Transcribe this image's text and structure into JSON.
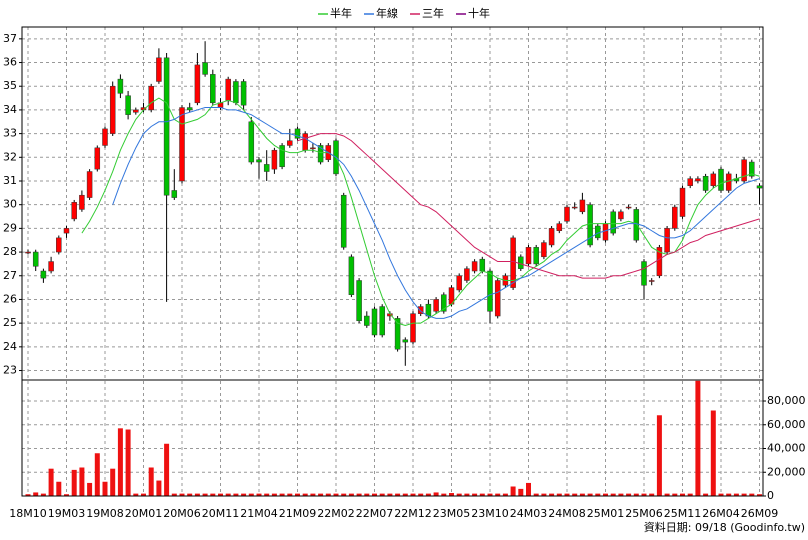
{
  "chart_data": [
    {
      "type": "candlestick",
      "categories": [
        "18M10",
        null,
        null,
        null,
        null,
        "19M03",
        null,
        null,
        null,
        null,
        "19M08",
        null,
        null,
        null,
        null,
        "20M01",
        null,
        null,
        null,
        null,
        "20M06",
        null,
        null,
        null,
        null,
        "20M11",
        null,
        null,
        null,
        null,
        "21M04",
        null,
        null,
        null,
        null,
        "21M09",
        null,
        null,
        null,
        null,
        "22M02",
        null,
        null,
        null,
        null,
        "22M07",
        null,
        null,
        null,
        null,
        "22M12",
        null,
        null,
        null,
        null,
        "23M05",
        null,
        null,
        null,
        null,
        "23M10",
        null,
        null,
        null,
        null,
        "24M03",
        null,
        null,
        null,
        null,
        "24M08",
        null,
        null,
        null,
        null,
        "25M01",
        null,
        null,
        null,
        null,
        "25M06",
        null,
        null,
        null,
        null,
        "25M11",
        null,
        null,
        null,
        null,
        "26M04",
        null,
        null,
        null,
        null,
        "26M09"
      ],
      "open": [
        28.0,
        28.0,
        27.2,
        27.2,
        28.0,
        28.8,
        29.4,
        29.8,
        30.3,
        31.5,
        32.5,
        33.0,
        35.3,
        34.6,
        33.9,
        34.0,
        34.0,
        35.2,
        36.2,
        30.6,
        31.0,
        34.1,
        34.3,
        36.0,
        35.5,
        34.1,
        34.4,
        35.2,
        35.2,
        33.5,
        31.9,
        31.7,
        31.5,
        32.5,
        32.5,
        33.2,
        32.3,
        32.4,
        32.5,
        31.9,
        32.7,
        30.4,
        27.8,
        26.8,
        25.3,
        25.6,
        25.7,
        25.3,
        25.2,
        24.3,
        24.2,
        25.4,
        25.8,
        25.5,
        26.2,
        25.8,
        26.4,
        26.8,
        27.2,
        27.7,
        27.2,
        25.3,
        26.6,
        26.5,
        27.8,
        27.5,
        28.2,
        27.8,
        28.3,
        28.9,
        29.3,
        29.9,
        29.7,
        30.0,
        29.1,
        28.5,
        29.7,
        29.4,
        29.9,
        29.8,
        27.6,
        26.8,
        27.0,
        28.0,
        29.0,
        29.5,
        30.8,
        31.0,
        31.2,
        30.8,
        31.5,
        30.6,
        31.1,
        31.0,
        31.8,
        30.8
      ],
      "high": [
        28.1,
        28.1,
        27.3,
        27.8,
        28.7,
        29.1,
        30.2,
        30.6,
        31.5,
        32.5,
        33.3,
        35.2,
        35.5,
        34.8,
        34.1,
        34.3,
        35.1,
        36.6,
        36.4,
        31.5,
        34.2,
        34.3,
        36.4,
        36.9,
        35.7,
        34.5,
        35.4,
        35.3,
        35.3,
        33.7,
        32.0,
        32.3,
        32.4,
        32.6,
        33.2,
        33.3,
        33.1,
        32.6,
        32.6,
        32.6,
        32.8,
        30.5,
        27.9,
        26.9,
        25.5,
        25.7,
        25.8,
        25.5,
        25.3,
        24.4,
        25.5,
        25.8,
        26.0,
        26.1,
        26.3,
        26.6,
        27.1,
        27.4,
        27.7,
        27.8,
        27.3,
        26.9,
        27.1,
        28.7,
        27.9,
        28.3,
        28.3,
        28.5,
        29.1,
        29.3,
        30.0,
        30.1,
        30.5,
        30.1,
        29.2,
        29.3,
        29.8,
        29.8,
        30.0,
        29.9,
        27.7,
        26.9,
        28.3,
        29.1,
        30.0,
        30.8,
        31.2,
        31.2,
        31.3,
        31.4,
        31.6,
        31.4,
        31.3,
        32.0,
        31.9,
        30.9
      ],
      "low": [
        27.9,
        27.2,
        26.7,
        27.1,
        27.9,
        28.6,
        29.3,
        29.7,
        30.2,
        31.4,
        32.4,
        32.9,
        34.5,
        33.6,
        33.8,
        33.9,
        33.9,
        35.1,
        25.9,
        30.2,
        30.9,
        33.9,
        34.2,
        35.4,
        34.2,
        34.0,
        34.2,
        34.2,
        34.0,
        31.7,
        31.1,
        31.0,
        31.3,
        31.5,
        32.4,
        32.7,
        32.2,
        32.2,
        31.7,
        31.8,
        31.2,
        28.1,
        26.1,
        25.0,
        24.8,
        24.4,
        24.4,
        25.1,
        23.8,
        23.2,
        24.1,
        25.3,
        25.2,
        25.4,
        25.4,
        25.7,
        26.3,
        26.7,
        27.1,
        27.1,
        25.0,
        25.2,
        26.5,
        26.4,
        27.2,
        27.4,
        27.4,
        27.7,
        28.2,
        28.8,
        29.2,
        29.8,
        29.6,
        28.2,
        28.5,
        28.4,
        28.7,
        29.3,
        29.8,
        28.4,
        26.0,
        26.6,
        26.9,
        27.9,
        28.9,
        29.4,
        30.7,
        30.9,
        30.5,
        30.7,
        30.5,
        30.5,
        30.9,
        30.9,
        31.1,
        30.0
      ],
      "close": [
        28.0,
        27.4,
        26.9,
        27.6,
        28.6,
        29.0,
        30.1,
        30.4,
        31.4,
        32.4,
        33.2,
        35.0,
        34.7,
        33.8,
        34.0,
        34.1,
        35.0,
        36.2,
        30.4,
        30.3,
        34.1,
        34.0,
        35.9,
        35.5,
        34.3,
        34.3,
        35.3,
        34.3,
        34.2,
        31.8,
        31.8,
        31.4,
        32.3,
        31.6,
        32.7,
        32.8,
        33.0,
        32.4,
        31.8,
        32.5,
        31.3,
        28.2,
        26.2,
        25.1,
        24.9,
        24.5,
        24.5,
        25.4,
        23.9,
        24.2,
        25.4,
        25.7,
        25.3,
        26.0,
        25.5,
        26.5,
        27.0,
        27.3,
        27.6,
        27.2,
        25.5,
        26.8,
        27.0,
        28.6,
        27.3,
        28.2,
        27.5,
        28.4,
        29.0,
        29.2,
        29.9,
        29.9,
        30.2,
        28.3,
        28.6,
        29.2,
        28.8,
        29.7,
        29.9,
        28.5,
        26.6,
        26.8,
        28.2,
        29.0,
        29.9,
        30.7,
        31.1,
        31.1,
        30.6,
        31.3,
        30.6,
        31.3,
        31.0,
        31.9,
        31.2,
        30.7
      ],
      "up_color": "#ff0000",
      "down_color": "#00c000",
      "series": [
        {
          "name": "半年",
          "color": "#33cc33",
          "values": [
            null,
            null,
            null,
            null,
            null,
            null,
            null,
            28.8,
            29.3,
            29.9,
            30.6,
            31.4,
            32.3,
            33.0,
            33.6,
            34.0,
            34.3,
            34.5,
            34.3,
            33.6,
            33.4,
            33.5,
            33.6,
            33.8,
            34.2,
            34.3,
            34.4,
            34.3,
            34.0,
            33.6,
            33.2,
            32.8,
            32.5,
            32.3,
            32.2,
            32.2,
            32.3,
            32.3,
            32.2,
            32.2,
            32.0,
            31.3,
            30.3,
            29.2,
            28.1,
            27.0,
            26.1,
            25.4,
            25.0,
            24.9,
            25.0,
            25.0,
            25.2,
            25.4,
            25.6,
            25.8,
            26.2,
            26.6,
            26.9,
            27.2,
            27.1,
            26.9,
            26.8,
            26.8,
            26.9,
            27.2,
            27.4,
            27.6,
            27.9,
            28.1,
            28.5,
            28.8,
            29.1,
            29.2,
            29.2,
            29.2,
            29.2,
            29.2,
            29.3,
            29.2,
            28.7,
            28.2,
            28.0,
            27.9,
            28.0,
            28.5,
            29.3,
            30.0,
            30.4,
            30.7,
            30.9,
            31.0,
            31.1,
            31.2,
            31.3,
            31.2
          ]
        },
        {
          "name": "年線",
          "color": "#3377dd",
          "values": [
            null,
            null,
            null,
            null,
            null,
            null,
            null,
            null,
            null,
            null,
            null,
            30.0,
            30.9,
            31.7,
            32.4,
            33.0,
            33.3,
            33.5,
            33.5,
            33.6,
            33.8,
            33.9,
            34.0,
            34.1,
            34.1,
            34.1,
            34.0,
            34.0,
            33.9,
            33.8,
            33.6,
            33.4,
            33.2,
            33.0,
            33.0,
            32.9,
            32.8,
            32.6,
            32.4,
            32.2,
            32.0,
            31.7,
            31.2,
            30.6,
            29.9,
            29.2,
            28.5,
            27.7,
            27.0,
            26.4,
            25.9,
            25.5,
            25.3,
            25.2,
            25.2,
            25.3,
            25.5,
            25.6,
            25.8,
            26.0,
            26.2,
            26.3,
            26.5,
            26.7,
            26.9,
            27.0,
            27.2,
            27.4,
            27.6,
            27.8,
            28.0,
            28.2,
            28.4,
            28.6,
            28.8,
            28.9,
            29.0,
            29.1,
            29.2,
            29.2,
            29.1,
            28.9,
            28.7,
            28.6,
            28.6,
            28.7,
            28.9,
            29.2,
            29.5,
            29.8,
            30.1,
            30.4,
            30.7,
            30.9,
            31.0,
            31.1
          ]
        },
        {
          "name": "三年",
          "color": "#d02060",
          "values": [
            null,
            null,
            null,
            null,
            null,
            null,
            null,
            null,
            null,
            null,
            null,
            null,
            null,
            null,
            null,
            null,
            null,
            null,
            null,
            null,
            null,
            null,
            null,
            null,
            null,
            null,
            null,
            null,
            null,
            null,
            null,
            null,
            null,
            null,
            null,
            32.7,
            32.8,
            32.9,
            33.0,
            33.0,
            33.0,
            32.9,
            32.7,
            32.4,
            32.1,
            31.8,
            31.5,
            31.2,
            30.9,
            30.6,
            30.3,
            30.0,
            29.9,
            29.7,
            29.4,
            29.1,
            28.8,
            28.5,
            28.2,
            28.0,
            27.8,
            27.6,
            27.6,
            27.6,
            27.5,
            27.4,
            27.3,
            27.2,
            27.1,
            27.0,
            27.0,
            27.0,
            26.9,
            26.9,
            26.9,
            26.9,
            27.0,
            27.0,
            27.1,
            27.2,
            27.3,
            27.5,
            27.7,
            27.9,
            28.0,
            28.2,
            28.4,
            28.5,
            28.7,
            28.8,
            28.9,
            29.0,
            29.1,
            29.2,
            29.3,
            29.4
          ]
        },
        {
          "name": "十年",
          "color": "#800080"
        }
      ],
      "ylim": [
        22.6,
        37.5
      ],
      "yticks": [
        23,
        24,
        25,
        26,
        27,
        28,
        29,
        30,
        31,
        32,
        33,
        34,
        35,
        36,
        37
      ],
      "grid": true
    },
    {
      "type": "bar",
      "color": "#ee1111",
      "values": [
        1500,
        3000,
        2000,
        23000,
        12000,
        1500,
        22000,
        24000,
        11000,
        36000,
        12000,
        23000,
        57000,
        56000,
        2000,
        2000,
        24000,
        13000,
        44000,
        2000,
        2000,
        2000,
        2000,
        2000,
        2000,
        2000,
        2000,
        2000,
        2000,
        2000,
        2000,
        2000,
        2000,
        2000,
        2000,
        2000,
        2000,
        2000,
        2000,
        2000,
        2000,
        2000,
        2000,
        2000,
        2000,
        2000,
        2000,
        2000,
        2000,
        2000,
        2000,
        2000,
        2000,
        3000,
        2000,
        2500,
        2000,
        2000,
        2000,
        2000,
        2000,
        2000,
        2000,
        8000,
        6000,
        11000,
        2000,
        2000,
        2000,
        2000,
        2000,
        2000,
        2000,
        2000,
        2000,
        2000,
        2000,
        2000,
        2000,
        2000,
        2000,
        2000,
        68000,
        2000,
        2000,
        2000,
        2000,
        97000,
        2000,
        72000,
        2000,
        2000,
        2000,
        2000,
        2000,
        1500
      ],
      "ylim": [
        0,
        97700
      ],
      "yticks": [
        0,
        {
          "value": 20000,
          "label": "20,000"
        },
        {
          "value": 40000,
          "label": "40,000"
        },
        {
          "value": 60000,
          "label": "60,000"
        },
        {
          "value": 80000,
          "label": "80,000"
        }
      ],
      "grid": true
    }
  ],
  "footer": "資料日期: 09/18 (Goodinfo.tw)"
}
